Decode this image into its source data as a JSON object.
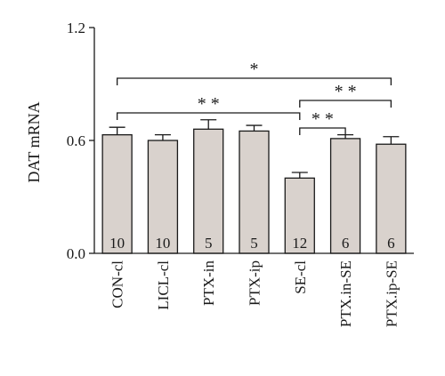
{
  "chart_data": {
    "type": "bar",
    "title": "",
    "xlabel": "",
    "ylabel": "DAT mRNA",
    "ylim": [
      0,
      1.2
    ],
    "yticks": [
      "0.0",
      "0.6",
      "1.2"
    ],
    "categories": [
      "CON-cl",
      "LICL-cl",
      "PTX-in",
      "PTX-ip",
      "SE-cl",
      "PTX.in-SE",
      "PTX.ip-SE"
    ],
    "values": [
      0.63,
      0.6,
      0.66,
      0.65,
      0.4,
      0.61,
      0.58
    ],
    "errors": [
      0.04,
      0.03,
      0.05,
      0.03,
      0.03,
      0.02,
      0.04
    ],
    "n_labels": [
      "10",
      "10",
      "5",
      "5",
      "12",
      "6",
      "6"
    ],
    "bar_color": "#d9d2cd",
    "grid": false,
    "significance": [
      {
        "from": 0,
        "to": 6,
        "label": "*"
      },
      {
        "from": 0,
        "to": 4,
        "label": "* *"
      },
      {
        "from": 4,
        "to": 6,
        "label": "* *"
      },
      {
        "from": 4,
        "to": 5,
        "label": "* *"
      }
    ]
  }
}
